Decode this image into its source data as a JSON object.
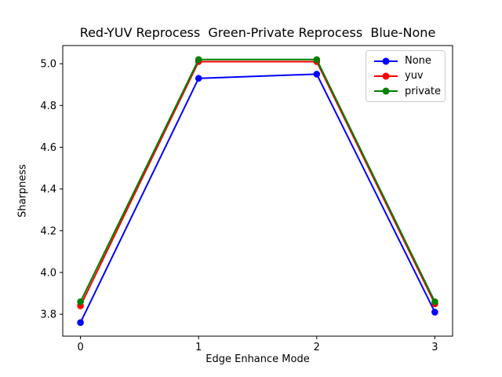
{
  "chart_data": {
    "type": "line",
    "title": "Red-YUV Reprocess  Green-Private Reprocess  Blue-None",
    "xlabel": "Edge Enhance Mode",
    "ylabel": "Sharpness",
    "x": [
      0,
      1,
      2,
      3
    ],
    "series": [
      {
        "name": "None",
        "color": "#0000ff",
        "values": [
          3.76,
          4.93,
          4.95,
          3.81
        ]
      },
      {
        "name": "yuv",
        "color": "#ff0000",
        "values": [
          3.84,
          5.01,
          5.01,
          3.85
        ]
      },
      {
        "name": "private",
        "color": "#008000",
        "values": [
          3.86,
          5.02,
          5.02,
          3.86
        ]
      }
    ],
    "xticks": [
      0,
      1,
      2,
      3
    ],
    "yticks": [
      3.8,
      4.0,
      4.2,
      4.4,
      4.6,
      4.8,
      5.0
    ],
    "xlim": [
      -0.15,
      3.15
    ],
    "ylim": [
      3.695,
      5.087
    ],
    "grid": false,
    "marker": "circle",
    "legend_position": "upper right",
    "frame_color": "#000000",
    "background_color": "#ffffff"
  }
}
